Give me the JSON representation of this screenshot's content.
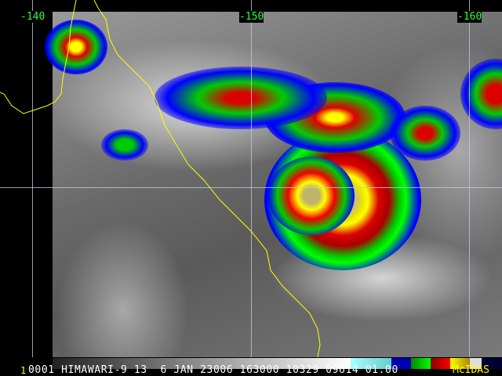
{
  "grid": {
    "longitude_labels": [
      "-140",
      "-150",
      "-160"
    ],
    "label_color": "#33ff33",
    "line_color": "#bbccdd"
  },
  "info_bar": {
    "frame": "1",
    "text": "0001 HIMAWARI-9 13  6 JAN 23006 163000 10329 09614 01.00",
    "brand": "McIDAS"
  },
  "colors": {
    "coastline": "#ffff00",
    "enhancement": [
      "#00008b",
      "#0000ff",
      "#00a000",
      "#00ff00",
      "#8b0000",
      "#ff0000",
      "#ffff00",
      "#c8a000",
      "#ffffff",
      "#000040"
    ]
  }
}
